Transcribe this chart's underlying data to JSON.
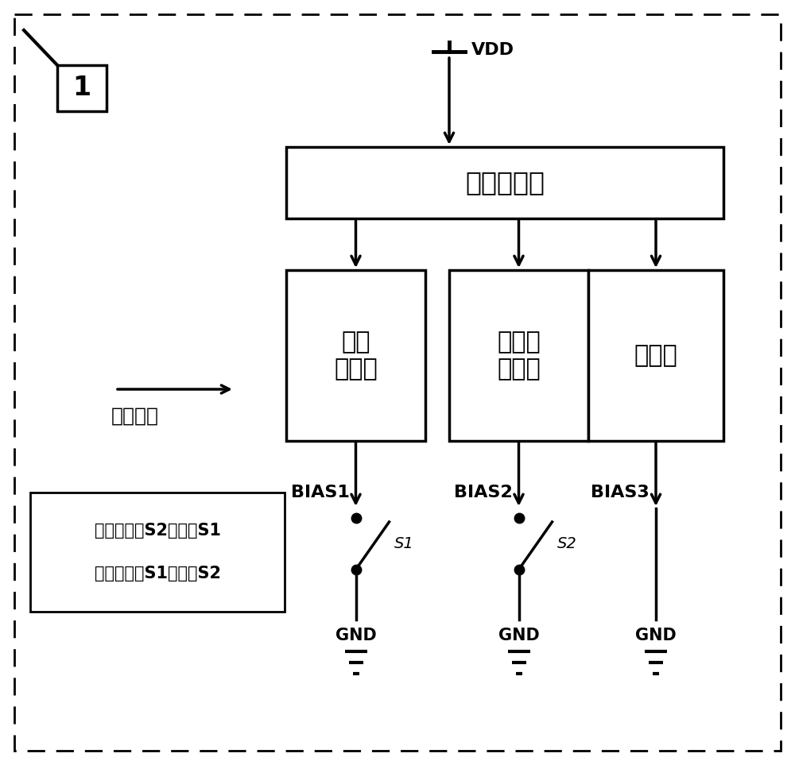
{
  "bg_color": "#ffffff",
  "fig_label": "1",
  "vdd_label": "VDD",
  "vco_label": "压控振荡器",
  "pa_label": "功率\n放大器",
  "lna_label": "低噪声\n放大器",
  "div_label": "分频器",
  "bias1_label": "BIAS1",
  "bias2_label": "BIAS2",
  "bias3_label": "BIAS3",
  "s1_label": "S1",
  "s2_label": "S2",
  "gnd_label": "GND",
  "arrow_label": "电流流向",
  "note_line1_cn": "接收时闭合",
  "note_line1_s2": "S2",
  "note_line1_mid": "，断开",
  "note_line1_s1": "S1",
  "note_line2_cn": "发射时闭合",
  "note_line2_s1": "S1",
  "note_line2_mid": "，断开",
  "note_line2_s2": "S2",
  "lw": 2.5
}
